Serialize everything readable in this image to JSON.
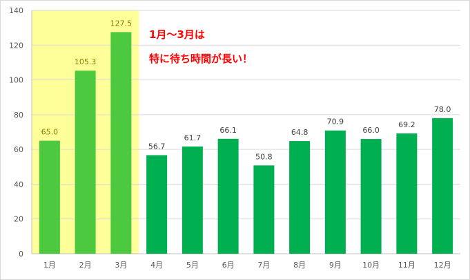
{
  "chart_data": {
    "type": "bar",
    "categories": [
      "1月",
      "2月",
      "3月",
      "4月",
      "5月",
      "6月",
      "7月",
      "8月",
      "9月",
      "10月",
      "11月",
      "12月"
    ],
    "values": [
      65.0,
      105.3,
      127.5,
      56.7,
      61.7,
      66.1,
      50.8,
      64.8,
      70.9,
      66.0,
      69.2,
      78.0
    ],
    "data_labels": [
      "65.0",
      "105.3",
      "127.5",
      "56.7",
      "61.7",
      "66.1",
      "50.8",
      "64.8",
      "70.9",
      "66.0",
      "69.2",
      "78.0"
    ],
    "ylim": [
      0,
      140
    ],
    "yticks": [
      "0",
      "20",
      "40",
      "60",
      "80",
      "100",
      "120",
      "140"
    ],
    "grid": true,
    "highlight_categories": [
      "1月",
      "2月",
      "3月"
    ],
    "colors": {
      "highlight_bar": "#4cc93f",
      "normal_bar": "#00b050",
      "highlight_band": "#ffff99",
      "highlight_label": "#7f7f00",
      "normal_label": "#404040",
      "gridline": "#d9d9d9",
      "annotation": "#ff0000"
    },
    "annotation": {
      "line1": "1月～3月は",
      "line2": "特に待ち時間が長い！"
    }
  }
}
